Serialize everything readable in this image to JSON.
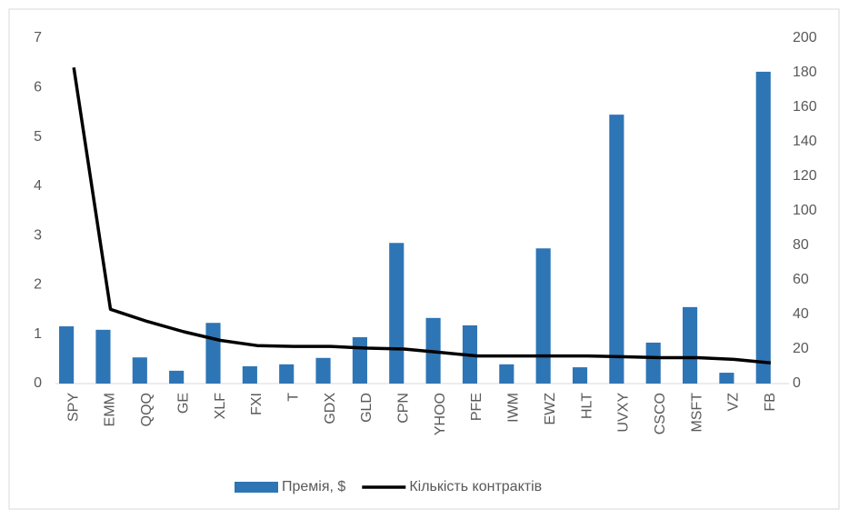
{
  "chart_data": {
    "type": "combo",
    "categories": [
      "SPY",
      "EMM",
      "QQQ",
      "GE",
      "XLF",
      "FXI",
      "T",
      "GDX",
      "GLD",
      "CPN",
      "YHOO",
      "PFE",
      "IWM",
      "EWZ",
      "HLT",
      "UVXY",
      "CSCO",
      "MSFT",
      "VZ",
      "FB"
    ],
    "series": [
      {
        "name": "Премія, $",
        "type": "bar",
        "color": "#2e75b6",
        "values": [
          1.16,
          1.09,
          0.53,
          0.26,
          1.23,
          0.35,
          0.39,
          0.52,
          0.94,
          2.85,
          1.33,
          1.18,
          0.39,
          2.74,
          0.33,
          5.45,
          0.83,
          1.55,
          0.22,
          6.32
        ]
      },
      {
        "name": "Кількість контрактів",
        "type": "line",
        "axis": "y2",
        "color": "#000000",
        "values": [
          183,
          43,
          36,
          30,
          25,
          22,
          21.5,
          21.5,
          20.5,
          20,
          18,
          16,
          16,
          16,
          16,
          15.5,
          15,
          15,
          14,
          12
        ]
      }
    ],
    "ylim": [
      0,
      7
    ],
    "yticks": [
      0,
      1,
      2,
      3,
      4,
      5,
      6,
      7
    ],
    "y2lim": [
      0,
      200
    ],
    "y2ticks": [
      0,
      20,
      40,
      60,
      80,
      100,
      120,
      140,
      160,
      180,
      200
    ],
    "grid": false,
    "legend": "bottom"
  }
}
